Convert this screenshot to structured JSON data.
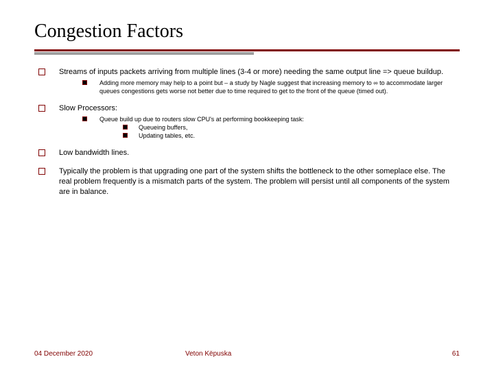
{
  "title": "Congestion Factors",
  "colors": {
    "accent": "#800000",
    "grey_bar": "#9e9e9e",
    "text": "#000000",
    "background": "#ffffff"
  },
  "bullets": {
    "b1": {
      "text": "Streams of inputs packets arriving from multiple lines (3-4 or more) needing the same output line => queue buildup.",
      "sub1": "Adding more memory may help to a point but – a study by Nagle suggest that increasing memory to ∞ to accommodate larger queues congestions gets worse not better due to time required to get to the front of the queue (timed out)."
    },
    "b2": {
      "text": "Slow Processors:",
      "sub1": "Queue build up due to routers slow CPU's at performing bookkeeping task:",
      "sub1a": "Queueing buffers,",
      "sub1b": "Updating tables, etc."
    },
    "b3": {
      "text": "Low bandwidth lines."
    },
    "b4": {
      "text": "Typically the problem is that upgrading one part of the system shifts the bottleneck to the other someplace else. The real problem frequently is a mismatch parts of the system. The problem will persist until all components of the system are in balance."
    }
  },
  "footer": {
    "date": "04 December 2020",
    "author": "Veton Këpuska",
    "page": "61"
  }
}
